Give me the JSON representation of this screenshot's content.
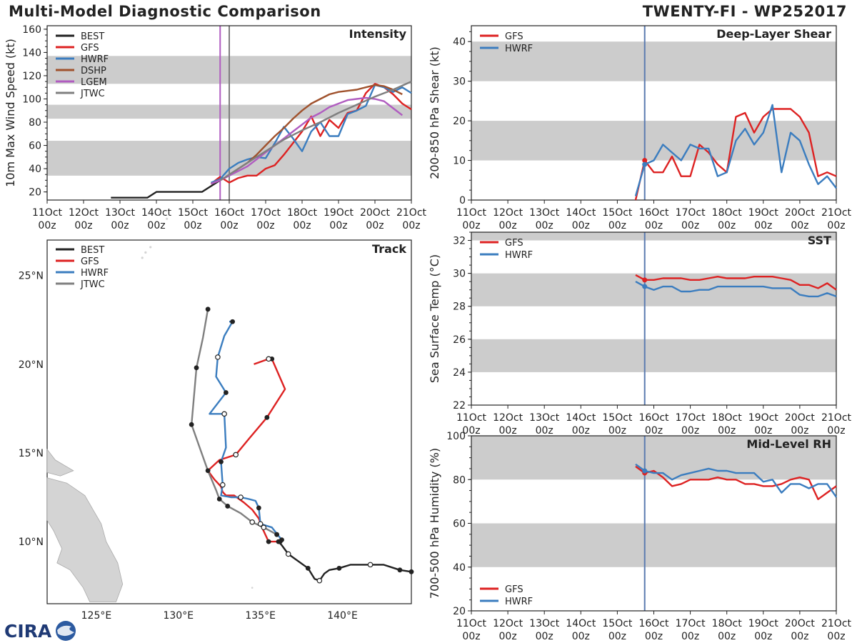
{
  "header": {
    "left_title": "Multi-Model Diagnostic Comparison",
    "right_title": "TWENTY-FI - WP252017"
  },
  "logo": {
    "text": "CIRA"
  },
  "colors": {
    "BEST": "#222222",
    "GFS": "#dd2222",
    "HWRF": "#3b7dbf",
    "DSHP": "#a0522d",
    "LGEM": "#b05cc0",
    "JTWC": "#7f7f7f",
    "band": "#cccccc",
    "vline_time": "#5b7bb0"
  },
  "time_axis": {
    "labels": [
      "11Oct\n00z",
      "12Oct\n00z",
      "13Oct\n00z",
      "14Oct\n00z",
      "15Oct\n00z",
      "16Oct\n00z",
      "17Oct\n00z",
      "18Oct\n00z",
      "19Oct\n00z",
      "20Oct\n00z",
      "21Oct\n00z"
    ],
    "range_days": [
      0,
      10
    ]
  },
  "chart_data": [
    {
      "id": "intensity",
      "type": "line",
      "title": "Intensity",
      "ylabel": "10m Max Wind Speed (kt)",
      "xlim": [
        0,
        10
      ],
      "ylim": [
        13,
        163
      ],
      "yticks": [
        20,
        40,
        60,
        80,
        100,
        120,
        140,
        160
      ],
      "bands": [
        [
          34,
          64
        ],
        [
          83,
          95
        ],
        [
          113,
          137
        ]
      ],
      "vlines": [
        {
          "x": 4.75,
          "color": "#b05cc0"
        },
        {
          "x": 5.0,
          "color": "#7f7f7f"
        }
      ],
      "legend": [
        "BEST",
        "GFS",
        "HWRF",
        "DSHP",
        "LGEM",
        "JTWC"
      ],
      "legend_position": "top-left",
      "series": [
        {
          "name": "BEST",
          "x": [
            1.75,
            2.75,
            3.0,
            4.0,
            4.25,
            4.5,
            4.75
          ],
          "y": [
            15,
            15,
            20,
            20,
            20,
            25,
            30
          ]
        },
        {
          "name": "GFS",
          "x": [
            4.5,
            4.75,
            5.0,
            5.25,
            5.5,
            5.75,
            6.0,
            6.25,
            6.5,
            6.75,
            7.0,
            7.25,
            7.5,
            7.75,
            8.0,
            8.25,
            8.5,
            8.75,
            9.0,
            9.25,
            9.5,
            9.75,
            10.0
          ],
          "y": [
            27,
            33,
            28,
            32,
            34,
            34,
            40,
            43,
            52,
            62,
            72,
            85,
            68,
            82,
            75,
            88,
            90,
            105,
            113,
            110,
            104,
            96,
            91
          ]
        },
        {
          "name": "HWRF",
          "x": [
            4.5,
            4.75,
            5.0,
            5.25,
            5.5,
            5.75,
            6.0,
            6.25,
            6.5,
            6.75,
            7.0,
            7.25,
            7.5,
            7.75,
            8.0,
            8.25,
            8.5,
            8.75,
            9.0,
            9.25,
            9.5,
            9.75,
            10.0
          ],
          "y": [
            28,
            31,
            40,
            45,
            48,
            50,
            49,
            62,
            76,
            66,
            55,
            72,
            80,
            68,
            68,
            87,
            90,
            94,
            112,
            110,
            106,
            110,
            105
          ]
        },
        {
          "name": "DSHP",
          "x": [
            4.5,
            4.75,
            5.0,
            5.25,
            5.5,
            5.75,
            6.0,
            6.25,
            6.5,
            6.75,
            7.0,
            7.25,
            7.5,
            7.75,
            8.0,
            8.25,
            8.5,
            8.75,
            9.0,
            9.25,
            9.5,
            9.75
          ],
          "y": [
            27,
            30,
            34,
            40,
            45,
            52,
            60,
            68,
            75,
            83,
            90,
            96,
            100,
            104,
            106,
            107,
            108,
            110,
            112,
            111,
            108,
            104
          ]
        },
        {
          "name": "LGEM",
          "x": [
            4.5,
            4.75,
            5.0,
            5.25,
            5.5,
            5.75,
            6.0,
            6.25,
            6.5,
            6.75,
            7.0,
            7.25,
            7.5,
            7.75,
            8.0,
            8.25,
            8.5,
            8.75,
            9.0,
            9.25,
            9.5,
            9.75
          ],
          "y": [
            27,
            30,
            34,
            38,
            42,
            48,
            54,
            60,
            66,
            72,
            78,
            84,
            88,
            93,
            96,
            99,
            100,
            101,
            100,
            98,
            92,
            86
          ]
        },
        {
          "name": "JTWC",
          "x": [
            4.75,
            5.0,
            5.5,
            6.0,
            6.5,
            7.0,
            7.5,
            8.0,
            8.5,
            9.0,
            9.5,
            10.0
          ],
          "y": [
            30,
            35,
            45,
            55,
            65,
            73,
            80,
            88,
            95,
            102,
            108,
            115
          ]
        }
      ]
    },
    {
      "id": "shear",
      "type": "line",
      "title": "Deep-Layer Shear",
      "ylabel": "200-850 hPa Shear (kt)",
      "xlim": [
        0,
        10
      ],
      "ylim": [
        0,
        44
      ],
      "yticks": [
        0,
        10,
        20,
        30,
        40
      ],
      "bands": [
        [
          10,
          20
        ],
        [
          30,
          40
        ]
      ],
      "vlines": [
        {
          "x": 4.75,
          "color": "#5b7bb0"
        }
      ],
      "legend": [
        "GFS",
        "HWRF"
      ],
      "legend_position": "top-left",
      "series": [
        {
          "name": "GFS",
          "x": [
            4.5,
            4.75,
            5.0,
            5.25,
            5.5,
            5.75,
            6.0,
            6.25,
            6.5,
            6.75,
            7.0,
            7.25,
            7.5,
            7.75,
            8.0,
            8.25,
            8.5,
            8.75,
            9.0,
            9.25,
            9.5,
            9.75,
            10.0
          ],
          "y": [
            0,
            10,
            7,
            7,
            11,
            6,
            6,
            14,
            12,
            9,
            7,
            21,
            22,
            17,
            21,
            23,
            23,
            23,
            21,
            17,
            6,
            7,
            6
          ]
        },
        {
          "name": "HWRF",
          "x": [
            4.5,
            4.75,
            5.0,
            5.25,
            5.5,
            5.75,
            6.0,
            6.25,
            6.5,
            6.75,
            7.0,
            7.25,
            7.5,
            7.75,
            8.0,
            8.25,
            8.5,
            8.75,
            9.0,
            9.25,
            9.5,
            9.75,
            10.0
          ],
          "y": [
            1,
            9,
            10,
            14,
            12,
            10,
            14,
            13,
            13,
            6,
            7,
            15,
            18,
            14,
            17,
            24,
            7,
            17,
            15,
            9,
            4,
            6,
            3
          ]
        }
      ]
    },
    {
      "id": "sst",
      "type": "line",
      "title": "SST",
      "ylabel": "Sea Surface Temp (°C)",
      "xlim": [
        0,
        10
      ],
      "ylim": [
        22,
        32.5
      ],
      "yticks": [
        22,
        24,
        26,
        28,
        30,
        32
      ],
      "bands": [
        [
          24,
          26
        ],
        [
          28,
          30
        ],
        [
          32,
          32.5
        ]
      ],
      "vlines": [
        {
          "x": 4.75,
          "color": "#5b7bb0"
        }
      ],
      "legend": [
        "GFS",
        "HWRF"
      ],
      "legend_position": "top-left",
      "series": [
        {
          "name": "GFS",
          "x": [
            4.5,
            4.75,
            5.0,
            5.25,
            5.5,
            5.75,
            6.0,
            6.25,
            6.5,
            6.75,
            7.0,
            7.25,
            7.5,
            7.75,
            8.0,
            8.25,
            8.5,
            8.75,
            9.0,
            9.25,
            9.5,
            9.75,
            10.0
          ],
          "y": [
            29.9,
            29.6,
            29.6,
            29.7,
            29.7,
            29.7,
            29.6,
            29.6,
            29.7,
            29.8,
            29.7,
            29.7,
            29.7,
            29.8,
            29.8,
            29.8,
            29.7,
            29.6,
            29.3,
            29.3,
            29.1,
            29.4,
            29.0
          ]
        },
        {
          "name": "HWRF",
          "x": [
            4.5,
            4.75,
            5.0,
            5.25,
            5.5,
            5.75,
            6.0,
            6.25,
            6.5,
            6.75,
            7.0,
            7.25,
            7.5,
            7.75,
            8.0,
            8.25,
            8.5,
            8.75,
            9.0,
            9.25,
            9.5,
            9.75,
            10.0
          ],
          "y": [
            29.5,
            29.2,
            29.0,
            29.2,
            29.2,
            28.9,
            28.9,
            29.0,
            29.0,
            29.2,
            29.2,
            29.2,
            29.2,
            29.2,
            29.2,
            29.1,
            29.1,
            29.1,
            28.7,
            28.6,
            28.6,
            28.8,
            28.6
          ]
        }
      ]
    },
    {
      "id": "rh",
      "type": "line",
      "title": "Mid-Level RH",
      "ylabel": "700-500 hPa Humidity (%)",
      "xlim": [
        0,
        10
      ],
      "ylim": [
        20,
        100
      ],
      "yticks": [
        20,
        40,
        60,
        80,
        100
      ],
      "bands": [
        [
          40,
          60
        ],
        [
          80,
          100
        ]
      ],
      "vlines": [
        {
          "x": 4.75,
          "color": "#5b7bb0"
        }
      ],
      "legend": [
        "GFS",
        "HWRF"
      ],
      "legend_position": "bottom-left",
      "series": [
        {
          "name": "GFS",
          "x": [
            4.5,
            4.75,
            5.0,
            5.25,
            5.5,
            5.75,
            6.0,
            6.25,
            6.5,
            6.75,
            7.0,
            7.25,
            7.5,
            7.75,
            8.0,
            8.25,
            8.5,
            8.75,
            9.0,
            9.25,
            9.5,
            9.75,
            10.0
          ],
          "y": [
            86,
            83,
            84,
            81,
            77,
            78,
            80,
            80,
            80,
            81,
            80,
            80,
            78,
            78,
            77,
            77,
            78,
            80,
            81,
            80,
            71,
            74,
            77
          ]
        },
        {
          "name": "HWRF",
          "x": [
            4.5,
            4.75,
            5.0,
            5.25,
            5.5,
            5.75,
            6.0,
            6.25,
            6.5,
            6.75,
            7.0,
            7.25,
            7.5,
            7.75,
            8.0,
            8.25,
            8.5,
            8.75,
            9.0,
            9.25,
            9.5,
            9.75,
            10.0
          ],
          "y": [
            87,
            84,
            83,
            83,
            80,
            82,
            83,
            84,
            85,
            84,
            84,
            83,
            83,
            83,
            79,
            80,
            74,
            78,
            78,
            76,
            78,
            78,
            72
          ]
        }
      ]
    },
    {
      "id": "track",
      "type": "map-track",
      "title": "Track",
      "lon_range": [
        122,
        144.2
      ],
      "lat_range": [
        6.5,
        27
      ],
      "lon_ticks": [
        125,
        130,
        135,
        140
      ],
      "lon_tick_labels": [
        "125°E",
        "130°E",
        "135°E",
        "140°E"
      ],
      "lat_ticks": [
        10,
        15,
        20,
        25
      ],
      "lat_tick_labels": [
        "10°N",
        "15°N",
        "20°N",
        "25°N"
      ],
      "legend": [
        "BEST",
        "GFS",
        "HWRF",
        "JTWC"
      ],
      "legend_position": "top-left",
      "series": [
        {
          "name": "BEST",
          "lon": [
            144.2,
            143.5,
            142.5,
            141.7,
            140.5,
            139.8,
            139.2,
            138.9,
            138.6,
            138.3,
            137.9,
            136.7,
            136.3,
            136.1
          ],
          "lat": [
            8.3,
            8.4,
            8.7,
            8.7,
            8.7,
            8.5,
            8.4,
            8.2,
            7.8,
            7.9,
            8.5,
            9.3,
            9.8,
            10.0
          ],
          "markers": [
            "filled",
            "filled",
            "none",
            "open",
            "none",
            "filled",
            "none",
            "none",
            "open",
            "none",
            "filled",
            "open",
            "none",
            "filled"
          ]
        },
        {
          "name": "GFS",
          "lon": [
            136.2,
            135.5,
            135.1,
            134.9,
            134.5,
            134.0,
            133.4,
            132.9,
            132.7,
            132.6,
            132.2,
            131.8,
            132.5,
            133.5,
            134.3,
            135.4,
            136.5,
            135.7,
            135.5,
            134.6
          ],
          "lat": [
            10.0,
            10.0,
            10.8,
            11.3,
            11.8,
            12.2,
            12.6,
            12.6,
            12.8,
            13.1,
            13.5,
            14.0,
            14.6,
            14.9,
            15.8,
            17.0,
            18.6,
            20.3,
            20.3,
            20.0
          ],
          "markers": [
            "filled",
            "filled",
            "none",
            "none",
            "none",
            "none",
            "none",
            "none",
            "none",
            "none",
            "none",
            "none",
            "none",
            "open",
            "none",
            "filled",
            "none",
            "filled",
            "open",
            "none"
          ]
        },
        {
          "name": "HWRF",
          "lon": [
            136.3,
            135.7,
            135.0,
            134.9,
            134.7,
            134.3,
            133.8,
            133.2,
            132.6,
            132.7,
            132.6,
            132.9,
            132.8,
            131.9,
            132.9,
            132.3,
            132.4,
            132.8,
            133.3,
            133.1
          ],
          "lat": [
            10.1,
            10.8,
            11.0,
            11.9,
            12.3,
            12.4,
            12.5,
            12.5,
            12.6,
            13.2,
            14.5,
            15.3,
            17.2,
            17.2,
            18.4,
            19.3,
            20.4,
            21.6,
            22.4,
            22.4
          ],
          "markers": [
            "filled",
            "none",
            "open",
            "filled",
            "none",
            "none",
            "open",
            "none",
            "none",
            "open",
            "filled",
            "none",
            "open",
            "none",
            "filled",
            "none",
            "open",
            "none",
            "filled",
            "none"
          ]
        },
        {
          "name": "JTWC",
          "lon": [
            136.0,
            135.2,
            134.5,
            133.8,
            133.0,
            132.5,
            132.3,
            131.8,
            131.3,
            130.8,
            131.1,
            131.5,
            131.8
          ],
          "lat": [
            10.4,
            10.8,
            11.1,
            11.6,
            12.0,
            12.4,
            12.9,
            14.0,
            15.3,
            16.6,
            19.8,
            21.5,
            23.1
          ],
          "markers": [
            "filled",
            "open",
            "open",
            "none",
            "filled",
            "filled",
            "none",
            "filled",
            "none",
            "filled",
            "filled",
            "none",
            "filled"
          ]
        }
      ]
    }
  ]
}
